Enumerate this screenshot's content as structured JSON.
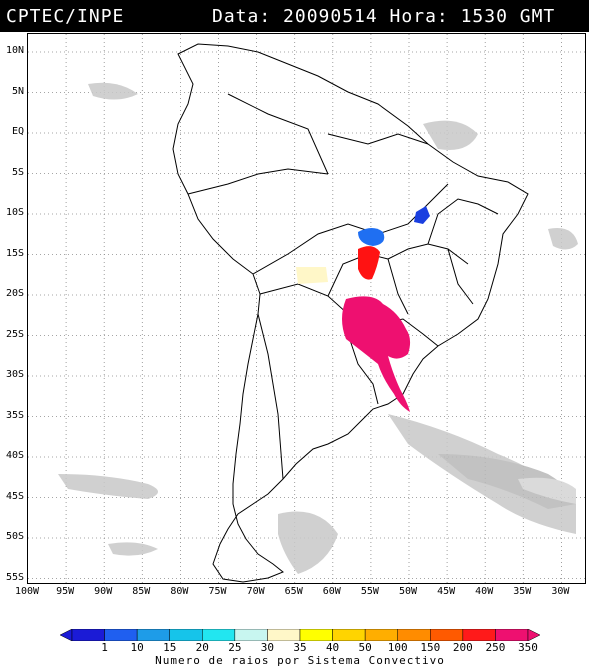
{
  "header": {
    "source": "CPTEC/INPE",
    "datetime": "Data: 20090514 Hora: 1530 GMT"
  },
  "map": {
    "latitude_labels": [
      "10N",
      "5N",
      "EQ",
      "5S",
      "10S",
      "15S",
      "20S",
      "25S",
      "30S",
      "35S",
      "40S",
      "45S",
      "50S",
      "55S"
    ],
    "longitude_labels": [
      "100W",
      "95W",
      "90W",
      "85W",
      "80W",
      "75W",
      "70W",
      "65W",
      "60W",
      "55W",
      "50W",
      "45W",
      "40W",
      "35W",
      "30W"
    ],
    "grid": "dotted",
    "convective_systems": [
      {
        "name": "northeast-system",
        "color": "#1a3fe0",
        "level": "1-10"
      },
      {
        "name": "central-blue-system",
        "color": "#1f6ff2",
        "level": "10-15"
      },
      {
        "name": "central-red-system",
        "color": "#ff1212",
        "level": "250-350"
      },
      {
        "name": "bolivia-system",
        "color": "#fff7c8",
        "level": "30-35"
      },
      {
        "name": "paraguay-south-system",
        "color": "#ee1070",
        "level": ">350"
      }
    ]
  },
  "colorbar": {
    "labels": [
      "1",
      "10",
      "15",
      "20",
      "25",
      "30",
      "35",
      "40",
      "50",
      "100",
      "150",
      "200",
      "250",
      "350"
    ],
    "colors": [
      "#1b1bd6",
      "#1f5ff0",
      "#1e9ce8",
      "#16c4ea",
      "#22e6f0",
      "#c8f6f0",
      "#fff7c8",
      "#ffff00",
      "#ffd400",
      "#ffae00",
      "#ff8c00",
      "#ff5a00",
      "#ff1a1a",
      "#ee1070"
    ],
    "caption": "Numero de raios por Sistema Convectivo"
  }
}
